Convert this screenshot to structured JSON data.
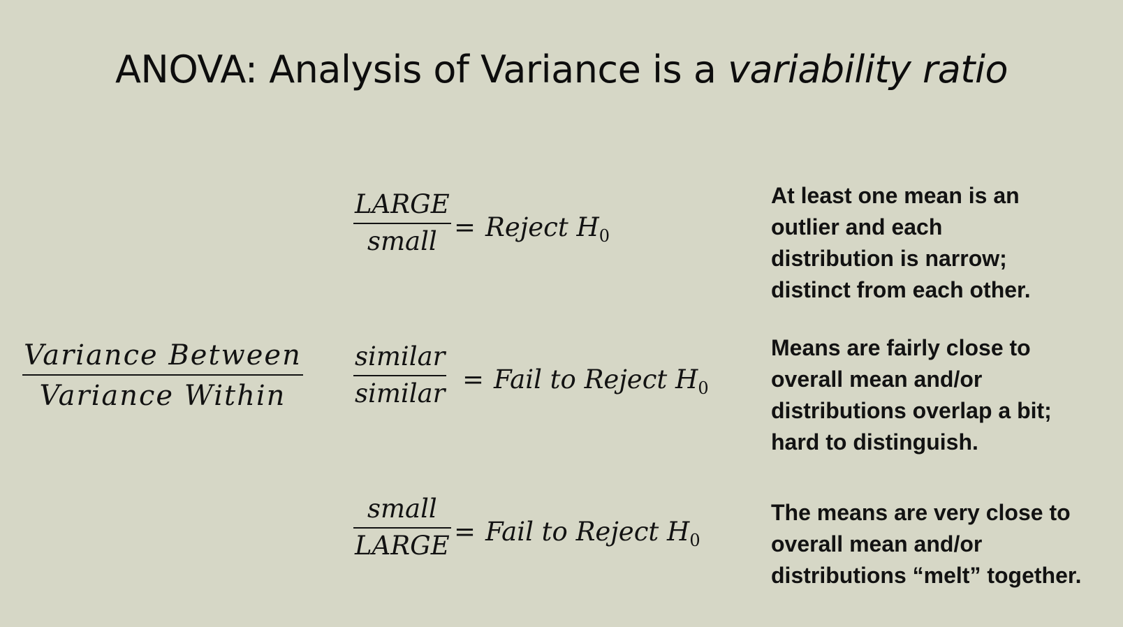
{
  "slide": {
    "title_main": "ANOVA: Analysis of Variance is a ",
    "title_emphasis": "variability ratio",
    "main_fraction": {
      "numerator": "Variance Between",
      "denominator": "Variance Within"
    },
    "rows": [
      {
        "numerator": "LARGE",
        "denominator": "small",
        "operator": "=",
        "result": "Reject H",
        "subscript": "0",
        "description": "At least one mean is an\noutlier and each\ndistribution is narrow;\ndistinct from each other."
      },
      {
        "numerator": "similar",
        "denominator": "similar",
        "operator": "=",
        "result": "Fail to Reject H",
        "subscript": "0",
        "description": "Means are fairly close to\noverall mean and/or\ndistributions overlap a bit;\nhard to distinguish."
      },
      {
        "numerator": "small",
        "denominator": "LARGE",
        "operator": "=",
        "result": "Fail to Reject H",
        "subscript": "0",
        "description": "The means are very close to\noverall mean and/or\ndistributions “melt” together."
      }
    ]
  }
}
